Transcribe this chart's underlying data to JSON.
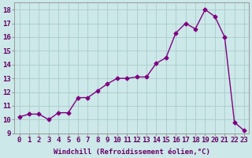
{
  "x": [
    0,
    1,
    2,
    3,
    4,
    5,
    6,
    7,
    8,
    9,
    10,
    11,
    12,
    13,
    14,
    15,
    16,
    17,
    18,
    19,
    20,
    21,
    22,
    23
  ],
  "y": [
    10.2,
    10.4,
    10.4,
    10.0,
    10.5,
    10.5,
    11.6,
    11.6,
    12.1,
    12.6,
    13.0,
    13.0,
    13.1,
    13.1,
    14.1,
    14.5,
    16.3,
    17.0,
    16.6,
    18.0,
    17.5,
    16.0,
    9.8,
    9.2
  ],
  "line_color": "#800080",
  "marker": "D",
  "markersize": 2.5,
  "bg_color": "#cce8e8",
  "grid_color": "#aacccc",
  "xlabel": "Windchill (Refroidissement éolien,°C)",
  "ylim": [
    9,
    18.5
  ],
  "yticks": [
    9,
    10,
    11,
    12,
    13,
    14,
    15,
    16,
    17,
    18
  ],
  "xticks": [
    0,
    1,
    2,
    3,
    4,
    5,
    6,
    7,
    8,
    9,
    10,
    11,
    12,
    13,
    14,
    15,
    16,
    17,
    18,
    19,
    20,
    21,
    22,
    23
  ],
  "xlabel_fontsize": 6.5,
  "tick_fontsize": 6.5,
  "line_width": 1.0
}
